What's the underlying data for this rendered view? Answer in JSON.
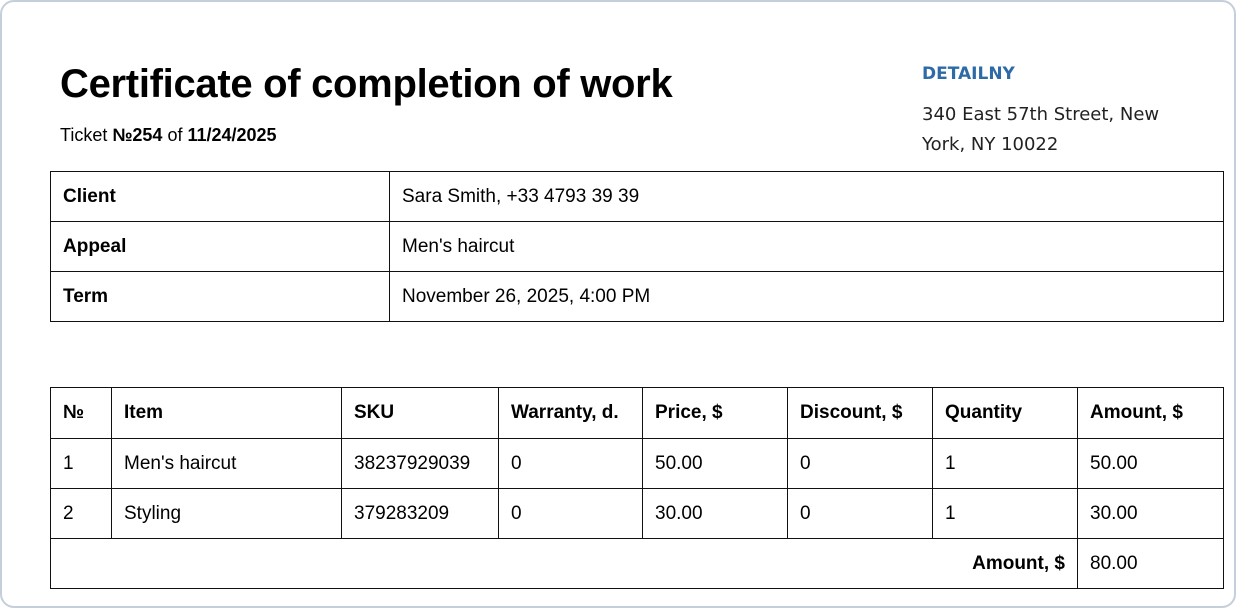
{
  "header": {
    "title": "Certificate of completion of work",
    "ticket_prefix": "Ticket ",
    "ticket_no": "№254",
    "ticket_of": " of ",
    "ticket_date": "11/24/2025"
  },
  "company": {
    "name": "DETAILNY",
    "address": "340 East 57th Street, New York, NY 10022",
    "color": "#2e6aa6"
  },
  "info": [
    {
      "label": "Client",
      "value": "Sara Smith, +33 4793 39 39"
    },
    {
      "label": "Appeal",
      "value": "Men's haircut"
    },
    {
      "label": "Term",
      "value": "November 26, 2025, 4:00 PM"
    }
  ],
  "items": {
    "columns": [
      "№",
      "Item",
      "SKU",
      "Warranty, d.",
      "Price, $",
      "Discount, $",
      "Quantity",
      "Amount, $"
    ],
    "rows": [
      [
        "1",
        "Men's haircut",
        "38237929039",
        "0",
        "50.00",
        "0",
        "1",
        "50.00"
      ],
      [
        "2",
        "Styling",
        "379283209",
        "0",
        "30.00",
        "0",
        "1",
        "30.00"
      ]
    ],
    "total_label": "Amount, $",
    "total_value": "80.00"
  }
}
